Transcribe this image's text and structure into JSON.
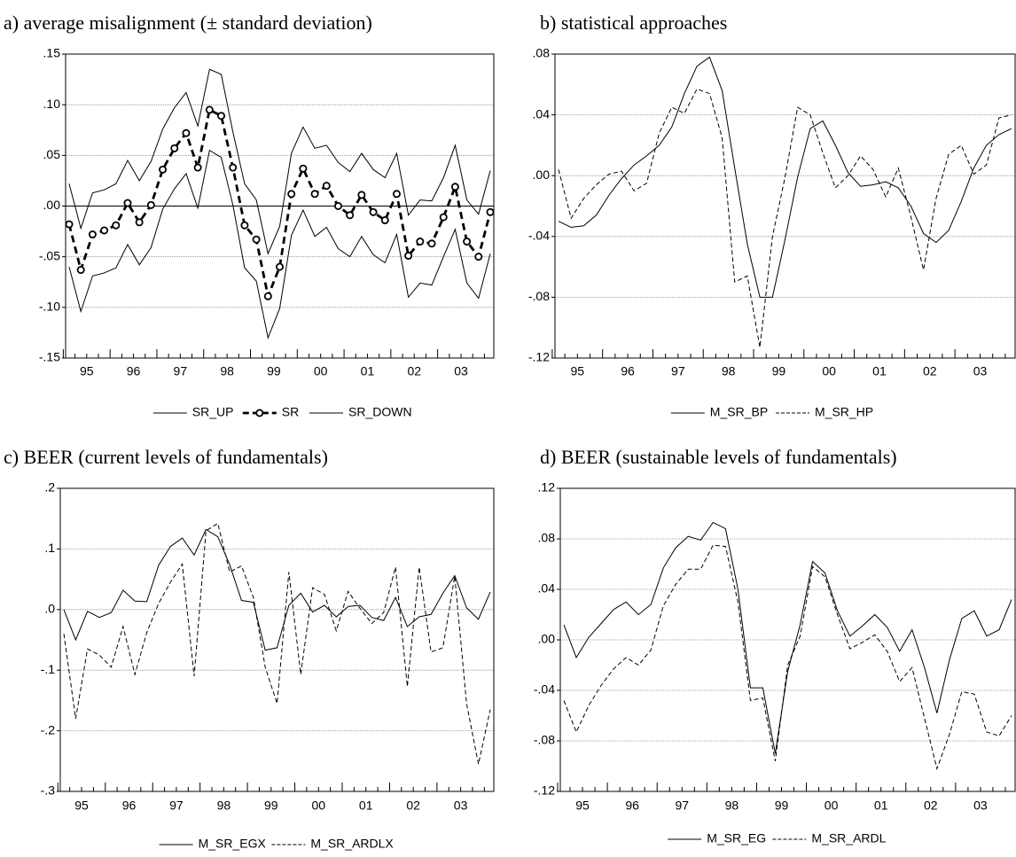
{
  "chart_data": [
    {
      "type": "line",
      "title": "a) average misalignment (± standard deviation)",
      "categories": [
        "95",
        null,
        null,
        null,
        "96",
        null,
        null,
        null,
        "97",
        null,
        null,
        null,
        "98",
        null,
        null,
        null,
        "99",
        null,
        null,
        null,
        "00",
        null,
        null,
        null,
        "01",
        null,
        null,
        null,
        "02",
        null,
        null,
        null,
        "03",
        null,
        null,
        null,
        null
      ],
      "ylim": [
        -0.15,
        0.15
      ],
      "yticks": [
        {
          "value": -0.15,
          "label": "-.15"
        },
        {
          "value": -0.1,
          "label": "-.10"
        },
        {
          "value": -0.05,
          "label": "-.05"
        },
        {
          "value": 0,
          "label": ".00"
        },
        {
          "value": 0.05,
          "label": ".05"
        },
        {
          "value": 0.1,
          "label": ".10"
        },
        {
          "value": 0.15,
          "label": ".15"
        }
      ],
      "grid": true,
      "zero_line": true,
      "series": [
        {
          "name": "SR_UP",
          "color": "#000000",
          "dash": "solid",
          "values": [
            0.022,
            -0.022,
            0.013,
            0.016,
            0.022,
            0.045,
            0.025,
            0.044,
            0.076,
            0.097,
            0.112,
            0.079,
            0.135,
            0.13,
            0.073,
            0.022,
            0.006,
            -0.047,
            -0.02,
            0.052,
            0.078,
            0.057,
            0.06,
            0.043,
            0.034,
            0.052,
            0.036,
            0.028,
            0.052,
            -0.009,
            0.006,
            0.005,
            0.028,
            0.06,
            0.006,
            -0.008,
            0.035
          ]
        },
        {
          "name": "SR",
          "color": "#000000",
          "dash": "bold-dashed",
          "marker": "circle",
          "values": [
            -0.018,
            -0.063,
            -0.028,
            -0.024,
            -0.019,
            0.003,
            -0.016,
            0.001,
            0.036,
            0.057,
            0.072,
            0.038,
            0.095,
            0.089,
            0.038,
            -0.019,
            -0.033,
            -0.089,
            -0.06,
            0.012,
            0.037,
            0.012,
            0.02,
            0.0,
            -0.009,
            0.011,
            -0.006,
            -0.014,
            0.012,
            -0.049,
            -0.035,
            -0.037,
            -0.011,
            0.019,
            -0.035,
            -0.05,
            -0.006
          ]
        },
        {
          "name": "SR_DOWN",
          "color": "#000000",
          "dash": "solid",
          "values": [
            -0.06,
            -0.104,
            -0.069,
            -0.066,
            -0.061,
            -0.038,
            -0.058,
            -0.041,
            -0.003,
            0.017,
            0.032,
            -0.002,
            0.055,
            0.048,
            0.001,
            -0.061,
            -0.074,
            -0.13,
            -0.101,
            -0.029,
            -0.004,
            -0.03,
            -0.021,
            -0.042,
            -0.05,
            -0.03,
            -0.048,
            -0.056,
            -0.028,
            -0.09,
            -0.076,
            -0.078,
            -0.05,
            -0.023,
            -0.076,
            -0.091,
            -0.047
          ]
        }
      ]
    },
    {
      "type": "line",
      "title": "b) statistical approaches",
      "categories": [
        "95",
        null,
        null,
        null,
        "96",
        null,
        null,
        null,
        "97",
        null,
        null,
        null,
        "98",
        null,
        null,
        null,
        "99",
        null,
        null,
        null,
        "00",
        null,
        null,
        null,
        "01",
        null,
        null,
        null,
        "02",
        null,
        null,
        null,
        "03",
        null,
        null,
        null,
        null
      ],
      "ylim": [
        -0.12,
        0.08
      ],
      "yticks": [
        {
          "value": -0.12,
          "label": "-.12"
        },
        {
          "value": -0.08,
          "label": "-.08"
        },
        {
          "value": -0.04,
          "label": "-.04"
        },
        {
          "value": 0,
          "label": ".00"
        },
        {
          "value": 0.04,
          "label": ".04"
        },
        {
          "value": 0.08,
          "label": ".08"
        }
      ],
      "grid": true,
      "series": [
        {
          "name": "M_SR_BP",
          "color": "#000000",
          "dash": "solid",
          "values": [
            -0.03,
            -0.034,
            -0.033,
            -0.026,
            -0.013,
            -0.002,
            0.007,
            0.013,
            0.02,
            0.032,
            0.054,
            0.072,
            0.078,
            0.056,
            0.005,
            -0.045,
            -0.08,
            -0.08,
            -0.042,
            -0.001,
            0.031,
            0.036,
            0.02,
            0.002,
            -0.007,
            -0.006,
            -0.004,
            -0.008,
            -0.02,
            -0.038,
            -0.044,
            -0.036,
            -0.017,
            0.005,
            0.02,
            0.027,
            0.031
          ]
        },
        {
          "name": "M_SR_HP",
          "color": "#000000",
          "dash": "dashed",
          "values": [
            0.004,
            -0.028,
            -0.015,
            -0.006,
            0.001,
            0.003,
            -0.01,
            -0.005,
            0.028,
            0.045,
            0.041,
            0.057,
            0.054,
            0.025,
            -0.07,
            -0.066,
            -0.113,
            -0.04,
            -0.001,
            0.045,
            0.04,
            0.015,
            -0.008,
            0.0,
            0.013,
            0.004,
            -0.014,
            0.005,
            -0.027,
            -0.062,
            -0.015,
            0.014,
            0.02,
            0.001,
            0.007,
            0.038,
            0.04
          ]
        }
      ]
    },
    {
      "type": "line",
      "title": "c) BEER (current levels of fundamentals)",
      "categories": [
        "95",
        null,
        null,
        null,
        "96",
        null,
        null,
        null,
        "97",
        null,
        null,
        null,
        "98",
        null,
        null,
        null,
        "99",
        null,
        null,
        null,
        "00",
        null,
        null,
        null,
        "01",
        null,
        null,
        null,
        "02",
        null,
        null,
        null,
        "03",
        null,
        null,
        null,
        null
      ],
      "ylim": [
        -0.3,
        0.2
      ],
      "yticks": [
        {
          "value": -0.3,
          "label": "-.3"
        },
        {
          "value": -0.2,
          "label": "-.2"
        },
        {
          "value": -0.1,
          "label": "-.1"
        },
        {
          "value": 0,
          "label": ".0"
        },
        {
          "value": 0.1,
          "label": ".1"
        },
        {
          "value": 0.2,
          "label": ".2"
        }
      ],
      "grid": true,
      "series": [
        {
          "name": "M_SR_EGX",
          "color": "#000000",
          "dash": "solid",
          "values": [
            0.0,
            -0.05,
            -0.003,
            -0.013,
            -0.005,
            0.032,
            0.014,
            0.013,
            0.073,
            0.104,
            0.118,
            0.09,
            0.132,
            0.12,
            0.074,
            0.015,
            0.012,
            -0.067,
            -0.063,
            0.007,
            0.027,
            -0.004,
            0.007,
            -0.012,
            0.005,
            0.007,
            -0.013,
            -0.018,
            0.02,
            -0.028,
            -0.012,
            -0.008,
            0.027,
            0.056,
            0.003,
            -0.016,
            0.029
          ]
        },
        {
          "name": "M_SR_ARDLX",
          "color": "#000000",
          "dash": "dashed",
          "values": [
            -0.04,
            -0.18,
            -0.065,
            -0.075,
            -0.095,
            -0.028,
            -0.107,
            -0.038,
            0.01,
            0.045,
            0.075,
            -0.11,
            0.13,
            0.142,
            0.062,
            0.072,
            0.02,
            -0.095,
            -0.155,
            0.062,
            -0.107,
            0.036,
            0.025,
            -0.035,
            0.03,
            0.002,
            -0.023,
            -0.005,
            0.07,
            -0.127,
            0.07,
            -0.07,
            -0.063,
            0.055,
            -0.155,
            -0.255,
            -0.165
          ]
        }
      ]
    },
    {
      "type": "line",
      "title": "d) BEER (sustainable levels of fundamentals)",
      "categories": [
        "95",
        null,
        null,
        null,
        "96",
        null,
        null,
        null,
        "97",
        null,
        null,
        null,
        "98",
        null,
        null,
        null,
        "99",
        null,
        null,
        null,
        "00",
        null,
        null,
        null,
        "01",
        null,
        null,
        null,
        "02",
        null,
        null,
        null,
        "03",
        null,
        null,
        null,
        null
      ],
      "ylim": [
        -0.12,
        0.12
      ],
      "yticks": [
        {
          "value": -0.12,
          "label": "-.12"
        },
        {
          "value": -0.08,
          "label": "-.08"
        },
        {
          "value": -0.04,
          "label": "-.04"
        },
        {
          "value": 0,
          "label": ".00"
        },
        {
          "value": 0.04,
          "label": ".04"
        },
        {
          "value": 0.08,
          "label": ".08"
        },
        {
          "value": 0.12,
          "label": ".12"
        }
      ],
      "grid": true,
      "series": [
        {
          "name": "M_SR_EG",
          "color": "#000000",
          "dash": "solid",
          "values": [
            0.012,
            -0.014,
            0.002,
            0.013,
            0.024,
            0.03,
            0.02,
            0.028,
            0.057,
            0.073,
            0.082,
            0.079,
            0.093,
            0.088,
            0.04,
            -0.038,
            -0.038,
            -0.09,
            -0.025,
            0.012,
            0.062,
            0.053,
            0.023,
            0.003,
            0.011,
            0.02,
            0.01,
            -0.009,
            0.008,
            -0.022,
            -0.058,
            -0.016,
            0.017,
            0.023,
            0.003,
            0.008,
            0.032
          ]
        },
        {
          "name": "M_SR_ARDL",
          "color": "#000000",
          "dash": "dashed",
          "values": [
            -0.048,
            -0.073,
            -0.052,
            -0.036,
            -0.023,
            -0.014,
            -0.02,
            -0.008,
            0.027,
            0.044,
            0.056,
            0.056,
            0.075,
            0.074,
            0.03,
            -0.048,
            -0.046,
            -0.096,
            -0.02,
            0.003,
            0.058,
            0.05,
            0.02,
            -0.007,
            -0.002,
            0.004,
            -0.009,
            -0.033,
            -0.022,
            -0.062,
            -0.102,
            -0.075,
            -0.041,
            -0.043,
            -0.073,
            -0.076,
            -0.06
          ]
        }
      ]
    }
  ]
}
